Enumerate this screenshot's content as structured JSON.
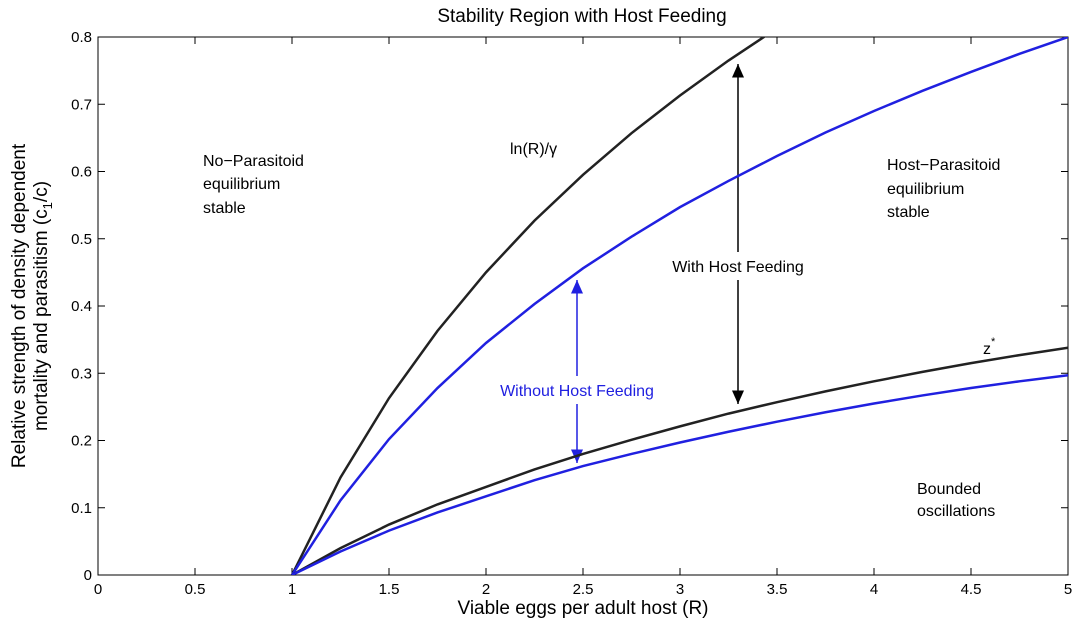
{
  "chart_data": {
    "type": "line",
    "title": "Stability Region with Host Feeding",
    "xlabel": "Viable eggs per adult host (R)",
    "ylabel": [
      "Relative strength of density dependent",
      "mortality and parasitism (c",
      "1",
      "/c)"
    ],
    "x": [
      1,
      1.25,
      1.5,
      1.75,
      2,
      2.25,
      2.5,
      2.75,
      3,
      3.25,
      3.5,
      3.75,
      4,
      4.25,
      4.5,
      4.75,
      5
    ],
    "series": [
      {
        "color": "#222222",
        "values": [
          0,
          0.145,
          0.263,
          0.363,
          0.45,
          0.527,
          0.595,
          0.657,
          0.713,
          0.765,
          0.813,
          null,
          null,
          null,
          null,
          null,
          null
        ]
      },
      {
        "color": "#2020e0",
        "values": [
          0,
          0.111,
          0.202,
          0.278,
          0.345,
          0.403,
          0.456,
          0.503,
          0.547,
          0.586,
          0.623,
          0.658,
          0.69,
          0.72,
          0.748,
          0.775,
          0.8
        ]
      },
      {
        "color": "#222222",
        "values": [
          0,
          0.04,
          0.075,
          0.105,
          0.131,
          0.157,
          0.18,
          0.201,
          0.221,
          0.24,
          0.257,
          0.273,
          0.288,
          0.302,
          0.315,
          0.327,
          0.338
        ]
      },
      {
        "color": "#2020e0",
        "values": [
          0,
          0.035,
          0.066,
          0.093,
          0.117,
          0.141,
          0.162,
          0.18,
          0.197,
          0.213,
          0.228,
          0.242,
          0.255,
          0.267,
          0.278,
          0.288,
          0.297
        ]
      }
    ],
    "annotations": {
      "no_parasitoid": [
        "No−Parasitoid",
        "equilibrium",
        "stable"
      ],
      "host_parasitoid": [
        "Host−Parasitoid",
        "equilibrium",
        "stable"
      ],
      "bounded": [
        "Bounded",
        "oscillations"
      ],
      "ln": "ln(R)/γ",
      "with": "With Host Feeding",
      "without": "Without Host Feeding",
      "z": [
        "z",
        "*"
      ]
    },
    "xlim": [
      0,
      5
    ],
    "xticks": [
      0,
      0.5,
      1,
      1.5,
      2,
      2.5,
      3,
      3.5,
      4,
      4.5,
      5
    ],
    "ylim": [
      0,
      0.8
    ],
    "yticks": [
      0,
      0.1,
      0.2,
      0.3,
      0.4,
      0.5,
      0.6,
      0.7,
      0.8
    ]
  }
}
